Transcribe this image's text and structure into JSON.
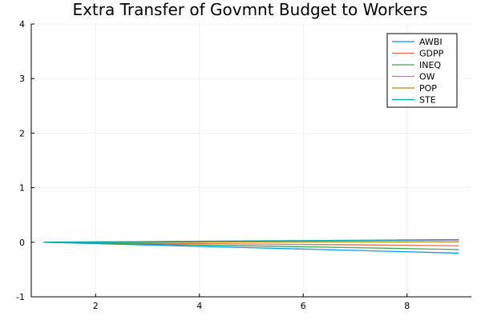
{
  "chart_data": {
    "type": "line",
    "title": "Extra Transfer of Govmnt Budget to Workers",
    "xlabel": "",
    "ylabel": "",
    "xlim": [
      0.76,
      9.24
    ],
    "ylim": [
      -1,
      4
    ],
    "xticks": [
      2,
      4,
      6,
      8
    ],
    "yticks": [
      -1,
      0,
      1,
      2,
      3,
      4
    ],
    "grid": true,
    "legend_position": "top-right",
    "x": [
      1,
      2,
      3,
      4,
      5,
      6,
      7,
      8,
      9
    ],
    "series": [
      {
        "name": "AWBI",
        "color": "#009AFA",
        "values": [
          0,
          -0.025,
          -0.05,
          -0.075,
          -0.1,
          -0.125,
          -0.15,
          -0.175,
          -0.2
        ]
      },
      {
        "name": "GDPP",
        "color": "#E36F47",
        "values": [
          0,
          -0.008,
          -0.016,
          -0.024,
          -0.032,
          -0.04,
          -0.048,
          -0.056,
          -0.065
        ]
      },
      {
        "name": "INEQ",
        "color": "#3EA44E",
        "values": [
          0,
          -0.016,
          -0.033,
          -0.05,
          -0.066,
          -0.083,
          -0.1,
          -0.116,
          -0.135
        ]
      },
      {
        "name": "OW",
        "color": "#C371D2",
        "values": [
          0,
          0.005,
          0.01,
          0.015,
          0.02,
          0.025,
          0.03,
          0.035,
          0.04
        ]
      },
      {
        "name": "POP",
        "color": "#AC8D18",
        "values": [
          0,
          0.001,
          0.002,
          0.003,
          0.004,
          0.005,
          0.006,
          0.007,
          0.008
        ]
      },
      {
        "name": "STE",
        "color": "#00A9AD",
        "values": [
          0,
          0.006,
          0.012,
          0.018,
          0.024,
          0.03,
          0.036,
          0.042,
          0.048
        ]
      }
    ]
  }
}
